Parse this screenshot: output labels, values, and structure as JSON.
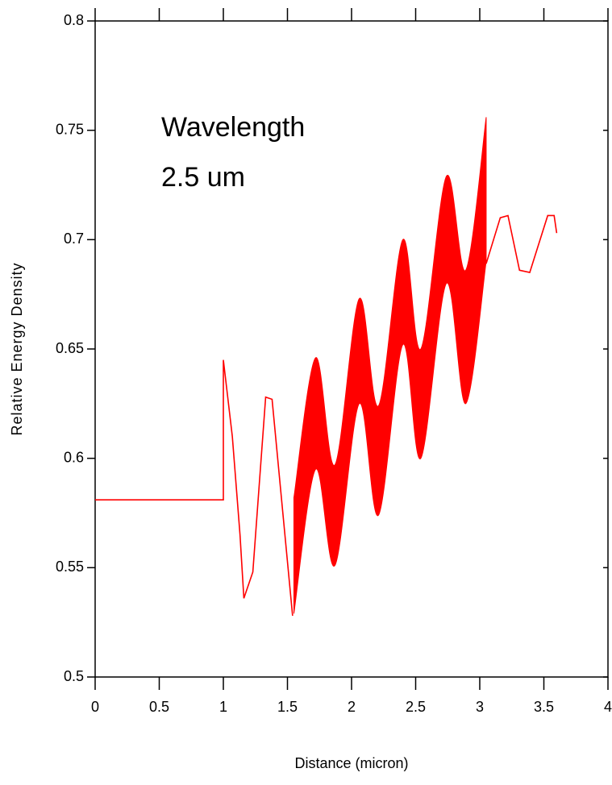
{
  "chart_data": {
    "type": "line",
    "xlabel": "Distance (micron)",
    "ylabel": "Relative Energy Density",
    "annotations": [
      "Wavelength",
      "2.5 um"
    ],
    "xlim": [
      0,
      4
    ],
    "ylim": [
      0.5,
      0.8
    ],
    "xticks": [
      0,
      0.5,
      1,
      1.5,
      2,
      2.5,
      3,
      3.5,
      4
    ],
    "yticks": [
      0.5,
      0.55,
      0.6,
      0.65,
      0.7,
      0.75,
      0.8
    ],
    "series": [
      {
        "color": "#ff0000",
        "x": [
          0,
          1,
          1,
          1.07,
          1.13,
          1.16,
          1.23,
          1.33,
          1.38,
          1.54
        ],
        "values": [
          0.581,
          0.581,
          0.645,
          0.61,
          0.565,
          0.536,
          0.548,
          0.628,
          0.627,
          0.528
        ]
      },
      {
        "color": "#ff0000",
        "x": [
          3.05,
          3.16,
          3.22,
          3.31,
          3.39,
          3.53,
          3.58,
          3.6
        ],
        "values": [
          0.689,
          0.71,
          0.711,
          0.686,
          0.685,
          0.711,
          0.711,
          0.703
        ]
      }
    ],
    "bands": [
      {
        "color": "#ff0000",
        "x": [
          1.55,
          1.72,
          1.87,
          2.06,
          2.21,
          2.4,
          2.54,
          2.74,
          2.89,
          3.05
        ],
        "upper": [
          0.582,
          0.646,
          0.597,
          0.673,
          0.624,
          0.7,
          0.65,
          0.729,
          0.686,
          0.756
        ],
        "lower": [
          0.529,
          0.595,
          0.551,
          0.625,
          0.574,
          0.652,
          0.6,
          0.68,
          0.625,
          0.69
        ]
      }
    ]
  }
}
